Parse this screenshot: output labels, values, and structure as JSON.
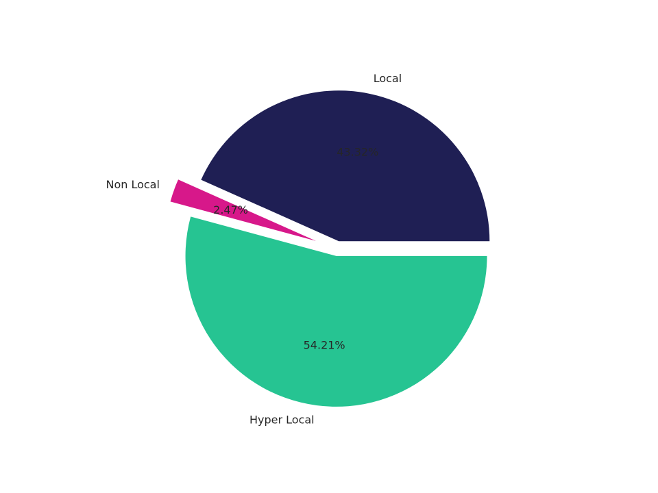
{
  "chart_data": {
    "type": "pie",
    "categories": [
      "Local",
      "Non Local",
      "Hyper Local"
    ],
    "values": [
      43.32,
      2.47,
      54.21
    ],
    "value_labels": [
      "43.32%",
      "2.47%",
      "54.21%"
    ],
    "colors": [
      "#1f1f54",
      "#d7188a",
      "#26c492"
    ]
  }
}
